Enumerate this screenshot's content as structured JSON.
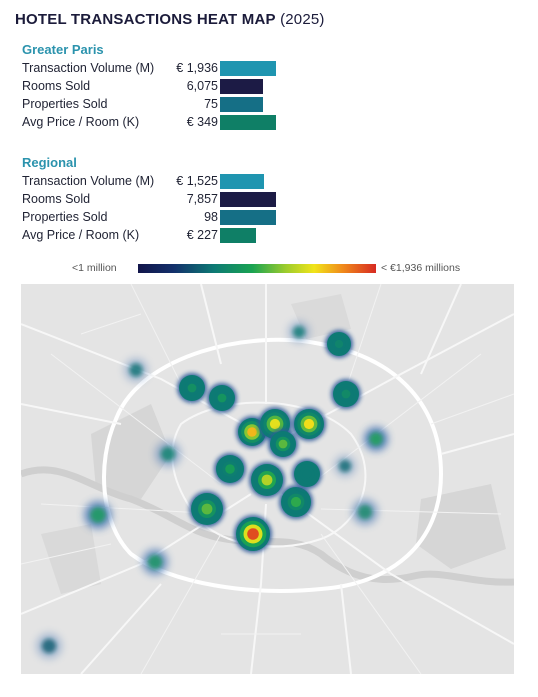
{
  "title": {
    "main": "HOTEL TRANSACTIONS HEAT MAP",
    "year": "(2025)"
  },
  "sections": [
    {
      "name": "Greater Paris",
      "rows": [
        {
          "label": "Transaction Volume (M)",
          "value": "€ 1,936",
          "fraction": 1.0,
          "color": "#1f95b0"
        },
        {
          "label": "Rooms Sold",
          "value": "6,075",
          "fraction": 0.77,
          "color": "#1c1b45"
        },
        {
          "label": "Properties Sold",
          "value": "75",
          "fraction": 0.77,
          "color": "#156f86"
        },
        {
          "label": "Avg Price / Room (K)",
          "value": "€ 349",
          "fraction": 1.0,
          "color": "#0f7f66"
        }
      ]
    },
    {
      "name": "Regional",
      "rows": [
        {
          "label": "Transaction Volume (M)",
          "value": "€ 1,525",
          "fraction": 0.79,
          "color": "#1f95b0"
        },
        {
          "label": "Rooms Sold",
          "value": "7,857",
          "fraction": 1.0,
          "color": "#1c1b45"
        },
        {
          "label": "Properties Sold",
          "value": "98",
          "fraction": 1.0,
          "color": "#156f86"
        },
        {
          "label": "Avg Price / Room (K)",
          "value": "€ 227",
          "fraction": 0.65,
          "color": "#0f7f66"
        }
      ]
    }
  ],
  "legend": {
    "low": "<1 million",
    "high": "< €1,936 millions"
  },
  "chart_data": {
    "type": "heatmap",
    "title": "HOTEL TRANSACTIONS HEAT MAP (2025)",
    "color_scale": {
      "min_label": "<1 million",
      "max_label": "< €1,936 millions"
    },
    "hotspots": [
      {
        "id": "p1",
        "intensity": 0.95
      },
      {
        "id": "p2",
        "intensity": 0.8
      },
      {
        "id": "p3",
        "intensity": 0.75
      },
      {
        "id": "p4",
        "intensity": 0.72
      },
      {
        "id": "p5",
        "intensity": 0.65
      },
      {
        "id": "p6",
        "intensity": 0.55
      },
      {
        "id": "p7",
        "intensity": 0.55
      },
      {
        "id": "p8",
        "intensity": 0.5
      },
      {
        "id": "p9",
        "intensity": 0.45
      },
      {
        "id": "p10",
        "intensity": 0.42
      },
      {
        "id": "p11",
        "intensity": 0.4
      },
      {
        "id": "p12",
        "intensity": 0.38
      },
      {
        "id": "p13",
        "intensity": 0.36
      },
      {
        "id": "p14",
        "intensity": 0.3
      },
      {
        "id": "p15",
        "intensity": 0.28
      },
      {
        "id": "p16",
        "intensity": 0.25
      },
      {
        "id": "p17",
        "intensity": 0.22
      },
      {
        "id": "p18",
        "intensity": 0.18
      },
      {
        "id": "p19",
        "intensity": 0.15
      },
      {
        "id": "p20",
        "intensity": 0.12
      },
      {
        "id": "p21",
        "intensity": 0.1
      },
      {
        "id": "p22",
        "intensity": 0.08
      },
      {
        "id": "p23",
        "intensity": 0.05
      }
    ]
  }
}
